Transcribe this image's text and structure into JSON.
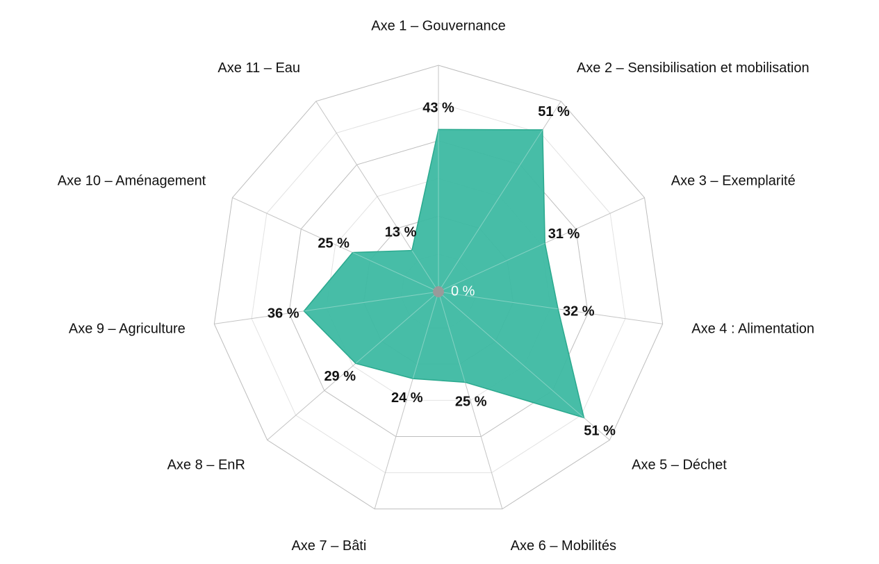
{
  "chart_data": {
    "type": "radar",
    "categories": [
      "Axe 1 – Gouvernance",
      "Axe 2 – Sensibilisation et mobilisation",
      "Axe 3 – Exemplarité",
      "Axe 4 :  Alimentation",
      "Axe 5 – Déchet",
      "Axe 6 – Mobilités",
      "Axe 7 – Bâti",
      "Axe 8 – EnR",
      "Axe 9 – Agriculture",
      "Axe 10 – Aménagement",
      "Axe 11 – Eau"
    ],
    "values": [
      43,
      51,
      31,
      32,
      51,
      25,
      24,
      29,
      36,
      25,
      13
    ],
    "value_labels": [
      "43 %",
      "51 %",
      "31 %",
      "32 %",
      "51 %",
      "25 %",
      "24 %",
      "29 %",
      "36 %",
      "25 %",
      "13 %"
    ],
    "color": "#3db9a2",
    "rlim": [
      0,
      60
    ],
    "rticks": [
      {
        "value": 0,
        "label": "0 %"
      },
      10,
      20,
      30,
      40,
      50,
      60
    ],
    "grid": true
  }
}
